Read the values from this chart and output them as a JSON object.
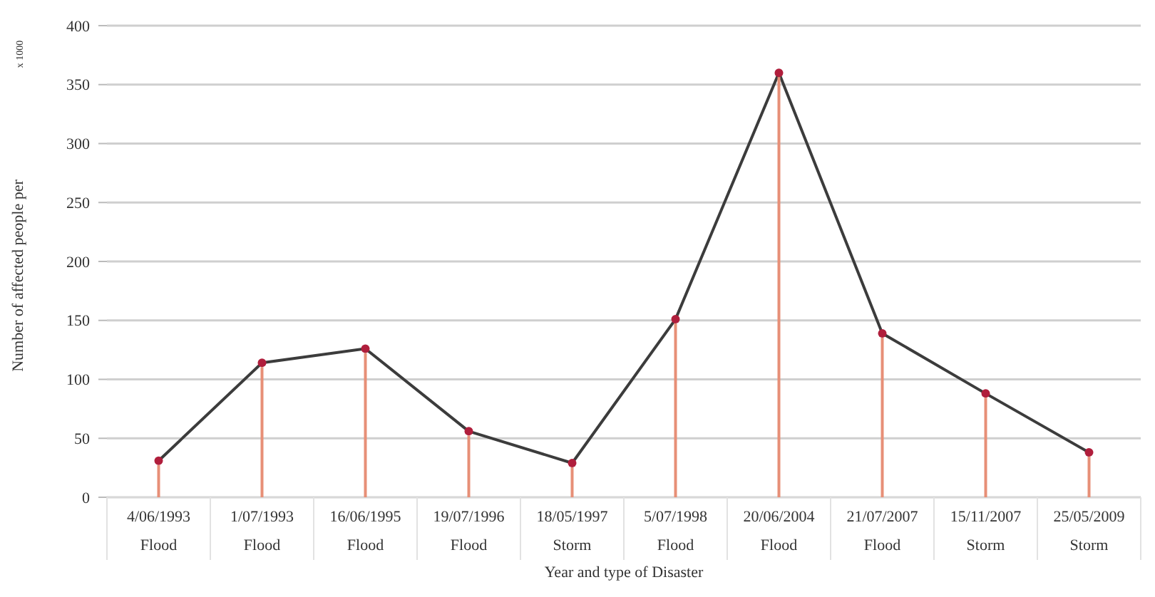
{
  "chart_data": {
    "type": "line",
    "xlabel": "Year and type of Disaster",
    "ylabel": "Number of affected people per",
    "annotations": [
      "x 1000"
    ],
    "categories": [
      "4/06/1993\nFlood",
      "1/07/1993\nFlood",
      "16/06/1995\nFlood",
      "19/07/1996\nFlood",
      "18/05/1997\nStorm",
      "5/07/1998\nFlood",
      "20/06/2004\nFlood",
      "21/07/2007\nFlood",
      "15/11/2007\nStorm",
      "25/05/2009\nStorm"
    ],
    "series": [
      {
        "color": "#3c3c3c",
        "values": [
          31,
          114,
          126,
          56,
          29,
          151,
          360,
          139,
          88,
          38
        ]
      },
      {
        "type": "lollipop",
        "color": "#b01e3c",
        "values": [
          31,
          114,
          126,
          56,
          29,
          151,
          360,
          139,
          88,
          38
        ]
      }
    ],
    "ylim": [
      0,
      400
    ],
    "yticks": [
      0,
      50,
      100,
      150,
      200,
      250,
      300,
      350,
      400
    ],
    "grid": "y"
  }
}
